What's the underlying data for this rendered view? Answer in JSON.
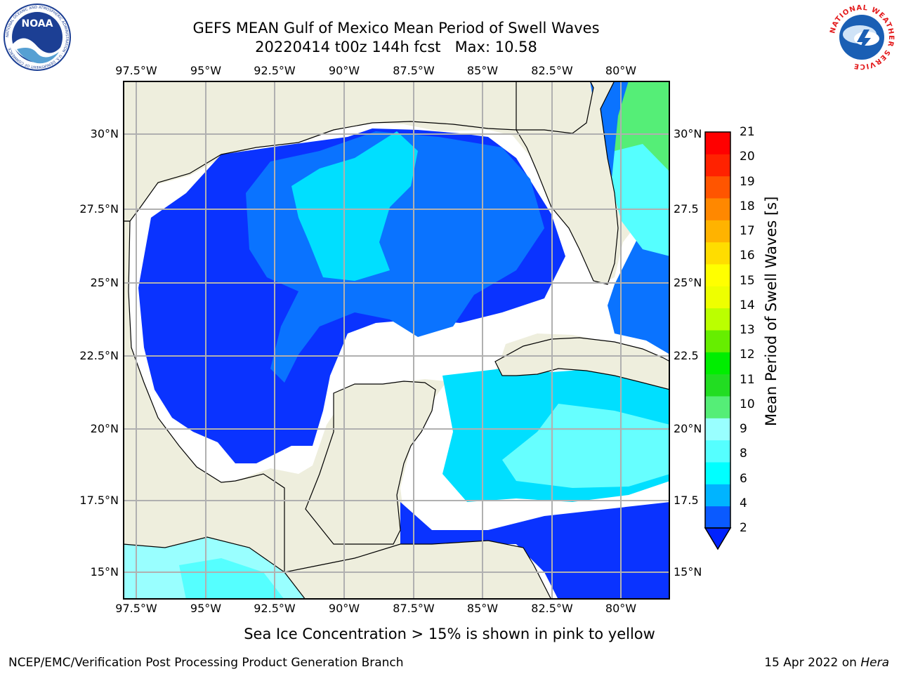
{
  "map": {
    "title_line1": "GEFS MEAN Gulf of Mexico Mean Period of Swell Waves",
    "title_line2": "20220414 t00z 144h fcst   Max: 10.58",
    "lon_ticks": [
      "97.5°W",
      "95°W",
      "92.5°W",
      "90°W",
      "87.5°W",
      "85°W",
      "82.5°W",
      "80°W"
    ],
    "lat_ticks_left": [
      "30°N",
      "27.5°N",
      "25°N",
      "22.5°N",
      "20°N",
      "17.5°N",
      "15°N"
    ],
    "lat_ticks_right": [
      "30°N",
      "27.5",
      "25°N",
      "22.5",
      "20°N",
      "17.5",
      "15°N"
    ],
    "land_color": "#eeeedd",
    "coast_color": "#000000",
    "grid_color": "#b0b0b0"
  },
  "colorbar": {
    "label": "Mean Period of Swell Waves [s]",
    "ticks": [
      "2",
      "4",
      "6",
      "8",
      "9",
      "10",
      "11",
      "12",
      "13",
      "14",
      "15",
      "16",
      "17",
      "18",
      "19",
      "20",
      "21"
    ],
    "colors": [
      "#0a5aff",
      "#00b4ff",
      "#00ffff",
      "#55ffff",
      "#99ffff",
      "#55ee77",
      "#22dd22",
      "#00ee00",
      "#66ee00",
      "#bbff00",
      "#eeff00",
      "#ffff00",
      "#ffdd00",
      "#ffb300",
      "#ff8800",
      "#ff5500",
      "#ff2200",
      "#ff0000"
    ],
    "extend_min_color": "#0022ff"
  },
  "logos": {
    "left_logo": "NOAA",
    "left_logo_ring": "NATIONAL OCEANIC AND ATMOSPHERIC ADMINISTRATION · U.S. DEPARTMENT OF COMMERCE",
    "right_logo_ring": "NATIONAL WEATHER SERVICE"
  },
  "footer": {
    "note": "Sea Ice Concentration > 15% is shown in pink to yellow",
    "left": "NCEP/EMC/Verification Post Processing Product Generation Branch",
    "right_prefix": "15 Apr 2022 on ",
    "right_machine": "Hera"
  }
}
